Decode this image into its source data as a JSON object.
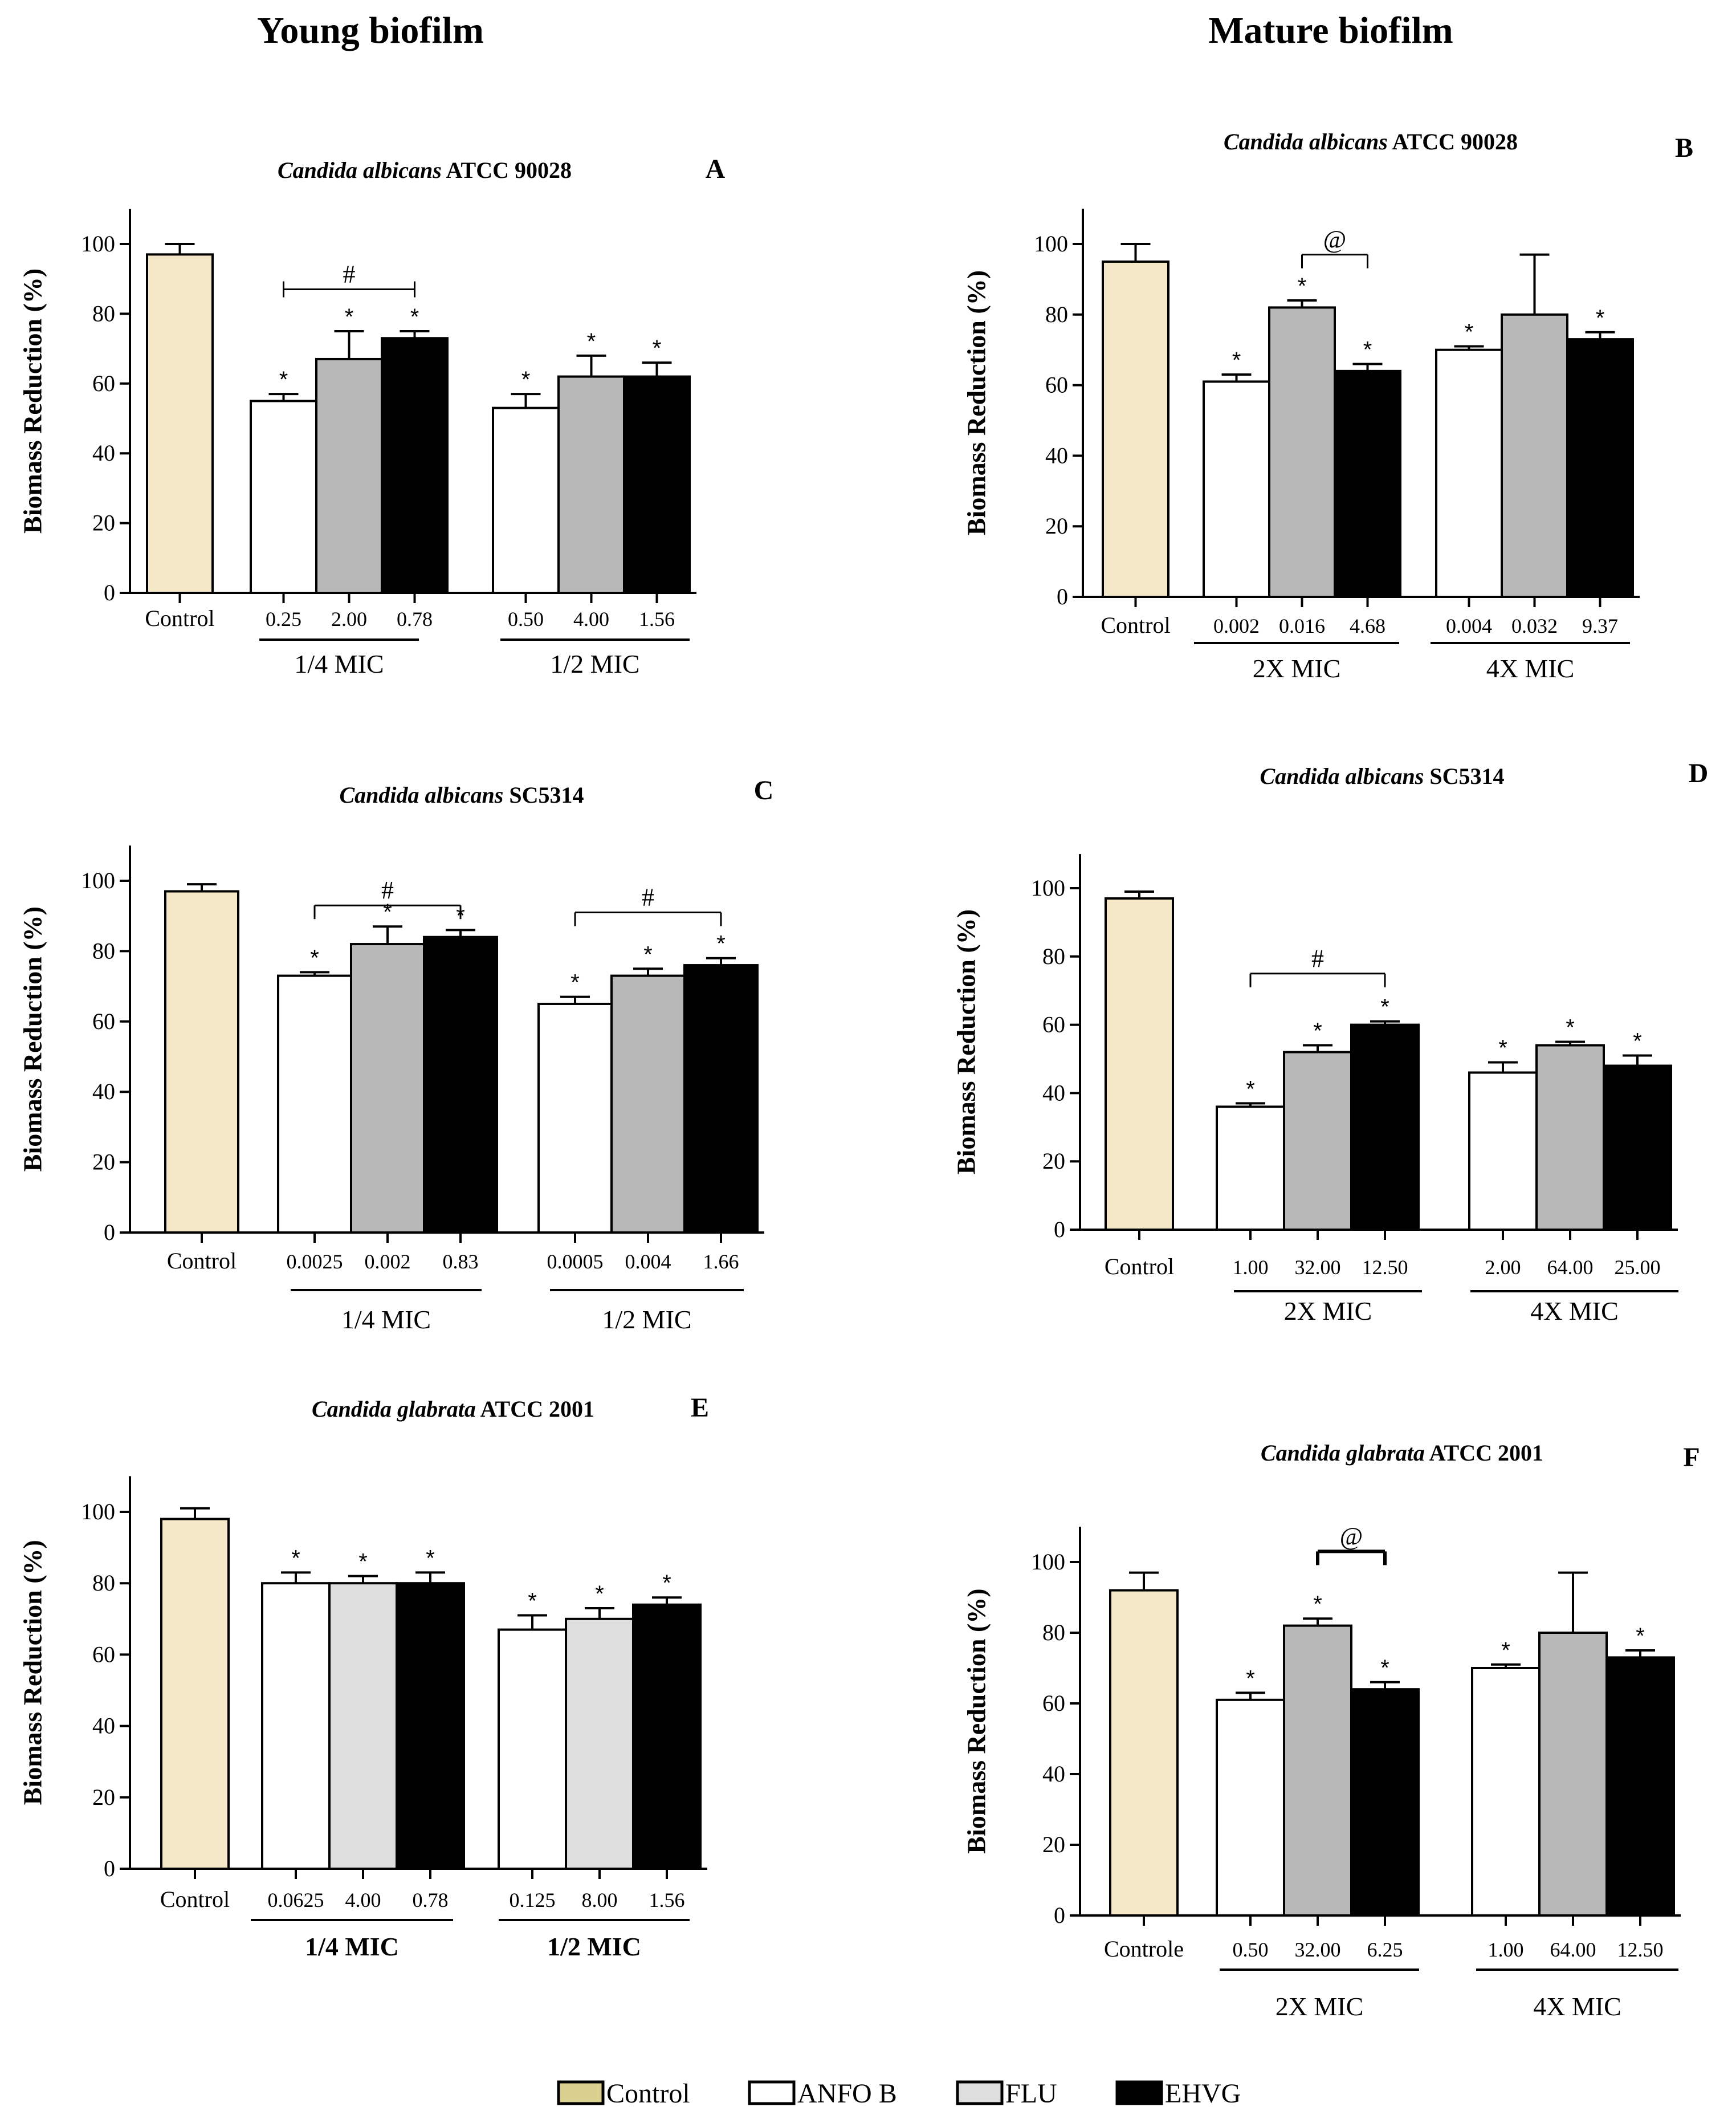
{
  "colors": {
    "control": "#f5e8c8",
    "anfo": "#ffffff",
    "flu": "#b8b8b8",
    "flu_light": "#dedede",
    "ehvg": "#000000",
    "stroke": "#000000",
    "legend_control": "#d9cf8f"
  },
  "headers": {
    "left": "Young biofilm",
    "right": "Mature biofilm"
  },
  "legend": [
    {
      "label": "Control",
      "key": "legend_control"
    },
    {
      "label": "ANFO B",
      "key": "anfo"
    },
    {
      "label": "FLU",
      "key": "flu_light"
    },
    {
      "label": "EHVG",
      "key": "ehvg"
    }
  ],
  "chart_data": [
    {
      "type": "bar",
      "panel": "A",
      "title_italic": "Candida albicans",
      "title_rest": " ATCC 90028",
      "ylabel": "Biomass Reduction (%)",
      "ylim": [
        0,
        110
      ],
      "yticks": [
        0,
        20,
        40,
        60,
        80,
        100
      ],
      "control_label": "Control",
      "control": {
        "value": 97,
        "err": 3
      },
      "flu_shade": "flu",
      "groups": [
        {
          "label": "1/4 MIC",
          "bold": false,
          "doses": [
            "0.25",
            "2.00",
            "0.78"
          ],
          "values": [
            55,
            67,
            73
          ],
          "errs": [
            2,
            8,
            2
          ],
          "sig": [
            "*",
            "*",
            "*"
          ]
        },
        {
          "label": "1/2 MIC",
          "bold": false,
          "doses": [
            "0.50",
            "4.00",
            "1.56"
          ],
          "values": [
            53,
            62,
            62
          ],
          "errs": [
            4,
            6,
            4
          ],
          "sig": [
            "*",
            "*",
            "*"
          ]
        }
      ],
      "brackets": [
        {
          "group": 0,
          "from": 0,
          "to": 2,
          "symbol": "#",
          "y": 87,
          "style": "flat"
        }
      ]
    },
    {
      "type": "bar",
      "panel": "B",
      "title_italic": "Candida albicans",
      "title_rest": " ATCC 90028",
      "ylabel": "Biomass Reduction (%)",
      "ylim": [
        0,
        110
      ],
      "yticks": [
        0,
        20,
        40,
        60,
        80,
        100
      ],
      "control_label": "Control",
      "control": {
        "value": 95,
        "err": 5
      },
      "flu_shade": "flu",
      "groups": [
        {
          "label": "2X MIC",
          "bold": false,
          "doses": [
            "0.002",
            "0.016",
            "4.68"
          ],
          "values": [
            61,
            82,
            64
          ],
          "errs": [
            2,
            2,
            2
          ],
          "sig": [
            "*",
            "*",
            "*"
          ]
        },
        {
          "label": "4X MIC",
          "bold": false,
          "doses": [
            "0.004",
            "0.032",
            "9.37"
          ],
          "values": [
            70,
            80,
            73
          ],
          "errs": [
            1,
            17,
            2
          ],
          "sig": [
            "*",
            "",
            "*"
          ]
        }
      ],
      "brackets": [
        {
          "group": 0,
          "from": 1,
          "to": 2,
          "symbol": "@",
          "y": 97,
          "style": "down"
        }
      ]
    },
    {
      "type": "bar",
      "panel": "C",
      "title_italic": "Candida albicans",
      "title_rest": " SC5314",
      "ylabel": "Biomass Reduction (%)",
      "ylim": [
        0,
        110
      ],
      "yticks": [
        0,
        20,
        40,
        60,
        80,
        100
      ],
      "control_label": "Control",
      "control": {
        "value": 97,
        "err": 2
      },
      "flu_shade": "flu",
      "groups": [
        {
          "label": "1/4 MIC",
          "bold": false,
          "doses": [
            "0.0025",
            "0.002",
            "0.83"
          ],
          "values": [
            73,
            82,
            84
          ],
          "errs": [
            1,
            5,
            2
          ],
          "sig": [
            "*",
            "*",
            "*"
          ]
        },
        {
          "label": "1/2 MIC",
          "bold": false,
          "doses": [
            "0.0005",
            "0.004",
            "1.66"
          ],
          "values": [
            65,
            73,
            76
          ],
          "errs": [
            2,
            2,
            2
          ],
          "sig": [
            "*",
            "*",
            "*"
          ]
        }
      ],
      "brackets": [
        {
          "group": 0,
          "from": 0,
          "to": 2,
          "symbol": "#",
          "y": 93,
          "style": "down"
        },
        {
          "group": 1,
          "from": 0,
          "to": 2,
          "symbol": "#",
          "y": 91,
          "style": "down"
        }
      ]
    },
    {
      "type": "bar",
      "panel": "D",
      "title_italic": "Candida albicans",
      "title_rest": " SC5314",
      "ylabel": "Biomass Reduction (%)",
      "ylim": [
        0,
        110
      ],
      "yticks": [
        0,
        20,
        40,
        60,
        80,
        100
      ],
      "control_label": "Control",
      "control": {
        "value": 97,
        "err": 2
      },
      "flu_shade": "flu",
      "groups": [
        {
          "label": "2X MIC",
          "bold": false,
          "doses": [
            "1.00",
            "32.00",
            "12.50"
          ],
          "values": [
            36,
            52,
            60
          ],
          "errs": [
            1,
            2,
            1
          ],
          "sig": [
            "*",
            "*",
            "*"
          ]
        },
        {
          "label": "4X MIC",
          "bold": false,
          "doses": [
            "2.00",
            "64.00",
            "25.00"
          ],
          "values": [
            46,
            54,
            48
          ],
          "errs": [
            3,
            1,
            3
          ],
          "sig": [
            "*",
            "*",
            "*"
          ]
        }
      ],
      "brackets": [
        {
          "group": 0,
          "from": 0,
          "to": 2,
          "symbol": "#",
          "y": 75,
          "style": "down"
        }
      ]
    },
    {
      "type": "bar",
      "panel": "E",
      "title_italic": "Candida glabrata",
      "title_rest": " ATCC 2001",
      "ylabel": "Biomass Reduction (%)",
      "ylim": [
        0,
        110
      ],
      "yticks": [
        0,
        20,
        40,
        60,
        80,
        100
      ],
      "control_label": "Control",
      "control": {
        "value": 98,
        "err": 3
      },
      "flu_shade": "flu_light",
      "groups": [
        {
          "label": "1/4 MIC",
          "bold": true,
          "doses": [
            "0.0625",
            "4.00",
            "0.78"
          ],
          "values": [
            80,
            80,
            80
          ],
          "errs": [
            3,
            2,
            3
          ],
          "sig": [
            "*",
            "*",
            "*"
          ]
        },
        {
          "label": "1/2 MIC",
          "bold": true,
          "doses": [
            "0.125",
            "8.00",
            "1.56"
          ],
          "values": [
            67,
            70,
            74
          ],
          "errs": [
            4,
            3,
            2
          ],
          "sig": [
            "*",
            "*",
            "*"
          ]
        }
      ],
      "brackets": []
    },
    {
      "type": "bar",
      "panel": "F",
      "title_italic": "Candida glabrata",
      "title_rest": " ATCC 2001",
      "ylabel": "Biomass Reduction (%)",
      "ylim": [
        0,
        110
      ],
      "yticks": [
        0,
        20,
        40,
        60,
        80,
        100
      ],
      "control_label": "Controle",
      "control": {
        "value": 92,
        "err": 5
      },
      "flu_shade": "flu",
      "groups": [
        {
          "label": "2X MIC",
          "bold": false,
          "doses": [
            "0.50",
            "32.00",
            "6.25"
          ],
          "values": [
            61,
            82,
            64
          ],
          "errs": [
            2,
            2,
            2
          ],
          "sig": [
            "*",
            "*",
            "*"
          ]
        },
        {
          "label": "4X MIC",
          "bold": false,
          "doses": [
            "1.00",
            "64.00",
            "12.50"
          ],
          "values": [
            70,
            80,
            73
          ],
          "errs": [
            1,
            17,
            2
          ],
          "sig": [
            "*",
            "",
            "*"
          ]
        }
      ],
      "brackets": [
        {
          "group": 0,
          "from": 1,
          "to": 2,
          "symbol": "@",
          "y": 103,
          "style": "down_thick"
        }
      ]
    }
  ]
}
